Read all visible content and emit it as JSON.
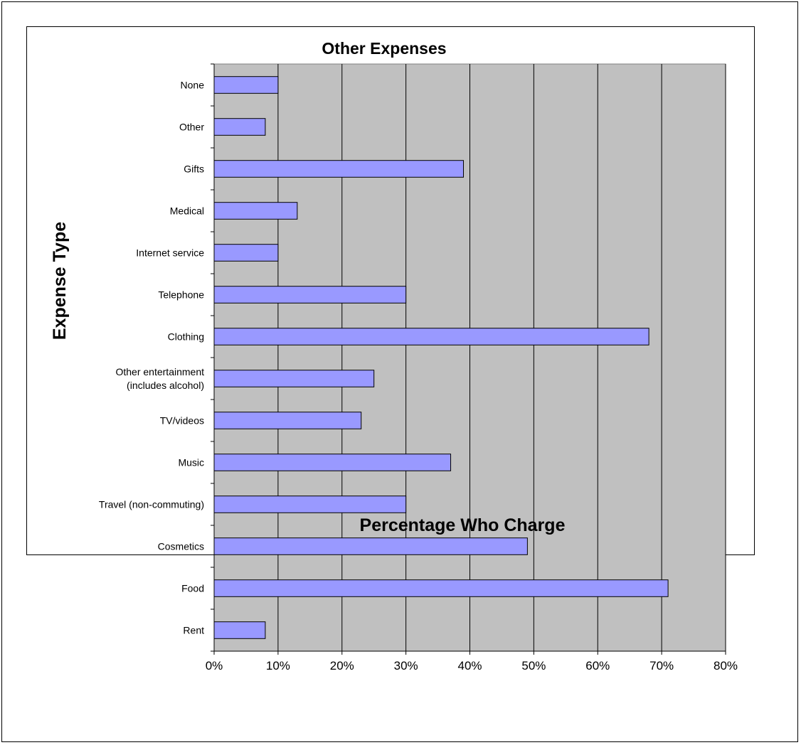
{
  "chart_data": {
    "type": "bar",
    "orientation": "horizontal",
    "title": "Other Expenses",
    "xlabel": "Percentage Who Charge",
    "ylabel": "Expense Type",
    "categories": [
      "None",
      "Other",
      "Gifts",
      "Medical",
      "Internet service",
      "Telephone",
      "Clothing",
      "Other entertainment\n(includes alcohol)",
      "TV/videos",
      "Music",
      "Travel (non-commuting)",
      "Cosmetics",
      "Food",
      "Rent"
    ],
    "values": [
      10,
      8,
      39,
      13,
      10,
      30,
      68,
      25,
      23,
      37,
      30,
      49,
      71,
      8
    ],
    "value_unit": "%",
    "xlim": [
      0,
      80
    ],
    "x_ticks": [
      "0%",
      "10%",
      "20%",
      "30%",
      "40%",
      "50%",
      "60%",
      "70%",
      "80%"
    ],
    "grid": "vertical gridlines",
    "legend": "none",
    "colors": {
      "bar_fill": "#9999ff",
      "bar_stroke": "#000000",
      "plot_background": "#c0c0c0",
      "gridline": "#000000"
    }
  }
}
